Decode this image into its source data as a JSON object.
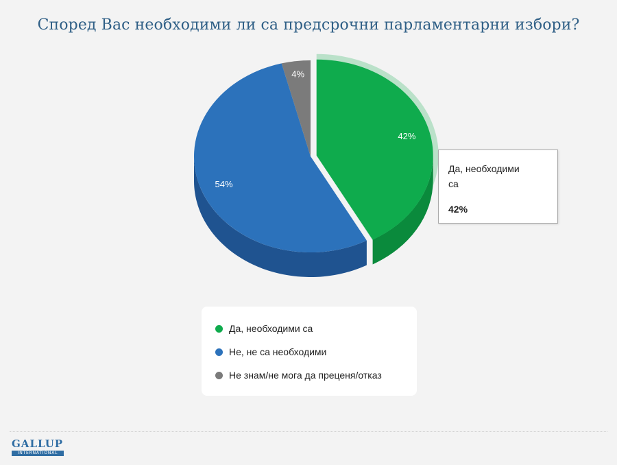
{
  "title": "Според Вас необходими ли са предсрочни парламентарни избори?",
  "chart_data": {
    "type": "pie",
    "title": "Според Вас необходими ли са предсрочни парламентарни избори?",
    "unit": "%",
    "slices": [
      {
        "label": "Да, необходими са",
        "value": 42,
        "display": "42%",
        "color": "#0fab4d",
        "side_color": "#0a8a3c",
        "selected": true
      },
      {
        "label": "Не, не са необходими",
        "value": 54,
        "display": "54%",
        "color": "#2c72bb",
        "side_color": "#1f5390",
        "selected": false
      },
      {
        "label": "Не знам/не мога да преценя/отказ",
        "value": 4,
        "display": "4%",
        "color": "#7b7b7b",
        "side_color": "#5f5f5f",
        "selected": false
      }
    ],
    "legend_position": "bottom"
  },
  "tooltip": {
    "label": "Да, необходими са",
    "value": "42%"
  },
  "logo": {
    "main": "GALLUP",
    "sub": "INTERNATIONAL"
  }
}
